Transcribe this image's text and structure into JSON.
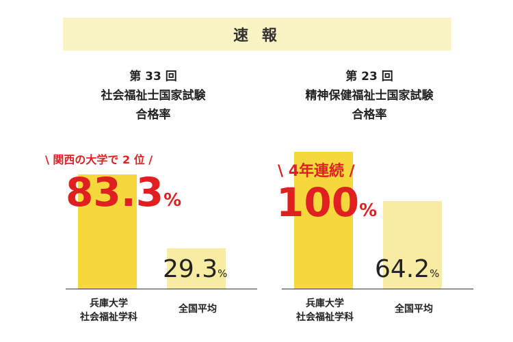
{
  "banner": "速 報",
  "chart_data": [
    {
      "type": "bar",
      "title_lines": [
        "第 33 回",
        "社会福祉士国家試験",
        "合格率"
      ],
      "categories": [
        "兵庫大学\n社会福祉学科",
        "全国平均"
      ],
      "category_lines": [
        [
          "兵庫大学",
          "社会福祉学科"
        ],
        [
          "全国平均"
        ]
      ],
      "values": [
        83.3,
        29.3
      ],
      "unit": "%",
      "highlight_note": "\\ 関西の大学で 2 位 /",
      "ylim": [
        0,
        100
      ]
    },
    {
      "type": "bar",
      "title_lines": [
        "第 23 回",
        "精神保健福祉士国家試験",
        "合格率"
      ],
      "categories": [
        "兵庫大学\n社会福祉学科",
        "全国平均"
      ],
      "category_lines": [
        [
          "兵庫大学",
          "社会福祉学科"
        ],
        [
          "全国平均"
        ]
      ],
      "values": [
        100,
        64.2
      ],
      "unit": "%",
      "highlight_note": "\\ 4年連続 /",
      "ylim": [
        0,
        100
      ]
    }
  ],
  "colors": {
    "banner_bg": "#faf3c3",
    "highlight_bar": "#f4d83c",
    "average_bar": "#f8eba2",
    "highlight_text": "#e02020"
  }
}
